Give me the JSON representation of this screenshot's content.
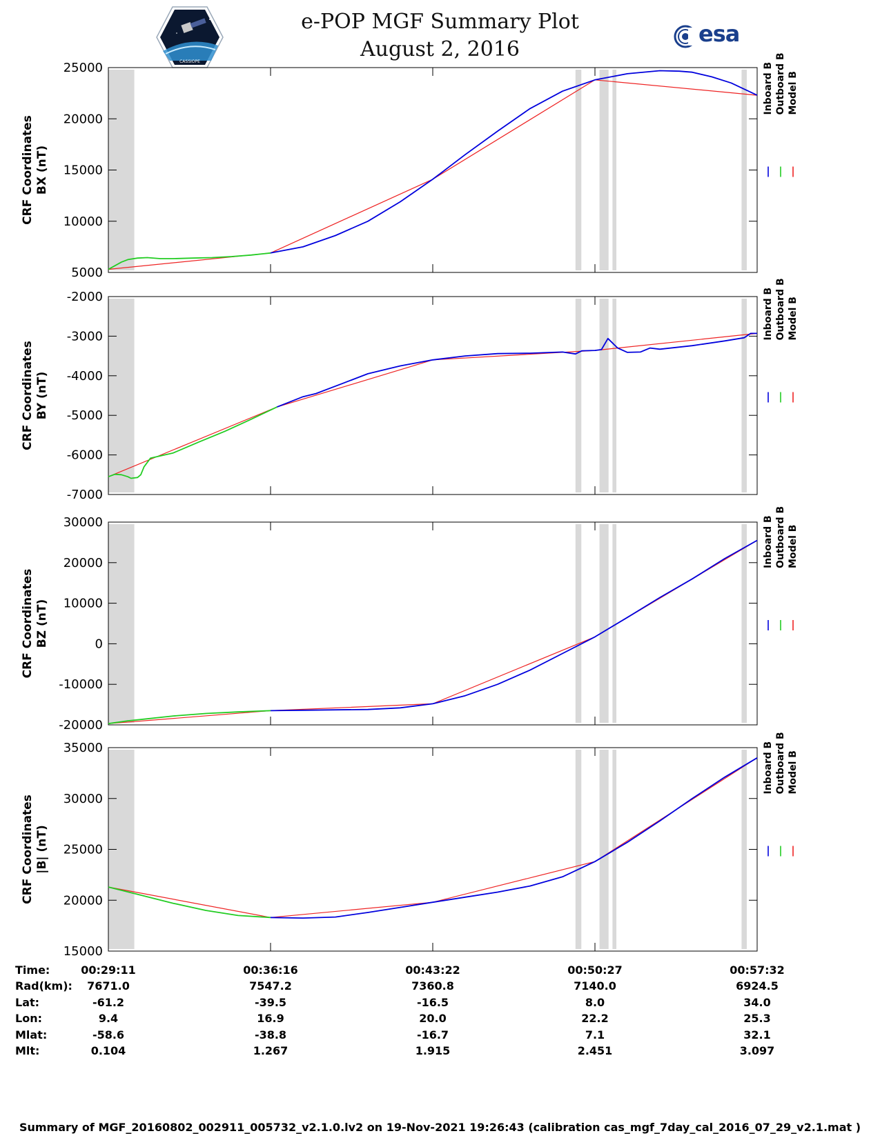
{
  "header": {
    "title_line1": "e-POP MGF Summary Plot",
    "title_line2": "August 2, 2016",
    "left_logo_caption": "CASSIOPE",
    "right_logo_text": "esa"
  },
  "legend": {
    "items": [
      {
        "label": "Inboard B",
        "color": "#0000dd"
      },
      {
        "label": "Outboard B",
        "color": "#22cc22"
      },
      {
        "label": "Model B",
        "color": "#ee2222"
      }
    ]
  },
  "chart_data": [
    {
      "type": "line",
      "ylabel_line1": "CRF Coordinates",
      "ylabel_line2": "BX (nT)",
      "ylim": [
        5000,
        25000
      ],
      "yticks": [
        5000,
        10000,
        15000,
        20000,
        25000
      ],
      "xlim": [
        0,
        1.0
      ],
      "gray_spans": [
        [
          0.0,
          0.04
        ],
        [
          0.72,
          0.729
        ],
        [
          0.757,
          0.771
        ],
        [
          0.777,
          0.783
        ],
        [
          0.976,
          0.984
        ]
      ],
      "series": [
        {
          "name": "Outboard B",
          "x": [
            0.0,
            0.01,
            0.02,
            0.03,
            0.045,
            0.06,
            0.08,
            0.1,
            0.13,
            0.16,
            0.19,
            0.22,
            0.25
          ],
          "y": [
            5300,
            5650,
            6000,
            6250,
            6400,
            6450,
            6350,
            6350,
            6400,
            6450,
            6550,
            6700,
            6900
          ]
        },
        {
          "name": "Inboard B",
          "x": [
            0.25,
            0.3,
            0.35,
            0.4,
            0.45,
            0.5,
            0.55,
            0.6,
            0.65,
            0.7,
            0.75,
            0.8,
            0.85,
            0.88,
            0.9,
            0.93,
            0.96,
            0.98,
            1.0
          ],
          "y": [
            6900,
            7500,
            8600,
            10000,
            11900,
            14100,
            16500,
            18800,
            21000,
            22700,
            23800,
            24400,
            24700,
            24650,
            24550,
            24100,
            23500,
            22900,
            22300
          ]
        },
        {
          "name": "Model B",
          "x": [
            0.0,
            0.25,
            0.5,
            0.75,
            1.0
          ],
          "y": [
            5300,
            6900,
            14100,
            23800,
            22300
          ]
        }
      ]
    },
    {
      "type": "line",
      "ylabel_line1": "CRF Coordinates",
      "ylabel_line2": "BY (nT)",
      "ylim": [
        -7000,
        -2000
      ],
      "yticks": [
        -7000,
        -6000,
        -5000,
        -4000,
        -3000,
        -2000
      ],
      "xlim": [
        0,
        1.0
      ],
      "gray_spans": [
        [
          0.0,
          0.04
        ],
        [
          0.72,
          0.729
        ],
        [
          0.757,
          0.771
        ],
        [
          0.777,
          0.783
        ],
        [
          0.976,
          0.984
        ]
      ],
      "series": [
        {
          "name": "Outboard B",
          "x": [
            0.0,
            0.01,
            0.02,
            0.03,
            0.035,
            0.045,
            0.05,
            0.055,
            0.065,
            0.1,
            0.14,
            0.18,
            0.22,
            0.26
          ],
          "y": [
            -6550,
            -6490,
            -6500,
            -6550,
            -6590,
            -6570,
            -6500,
            -6300,
            -6080,
            -5950,
            -5670,
            -5400,
            -5100,
            -4790
          ]
        },
        {
          "name": "Inboard B",
          "x": [
            0.26,
            0.3,
            0.32,
            0.36,
            0.4,
            0.45,
            0.5,
            0.55,
            0.6,
            0.65,
            0.7,
            0.72,
            0.73,
            0.75,
            0.76,
            0.77,
            0.785,
            0.8,
            0.82,
            0.835,
            0.85,
            0.9,
            0.95,
            0.98,
            0.99,
            1.0
          ],
          "y": [
            -4790,
            -4530,
            -4450,
            -4200,
            -3950,
            -3750,
            -3600,
            -3500,
            -3440,
            -3430,
            -3400,
            -3450,
            -3370,
            -3360,
            -3340,
            -3060,
            -3300,
            -3410,
            -3400,
            -3300,
            -3330,
            -3240,
            -3120,
            -3040,
            -2930,
            -2930
          ]
        },
        {
          "name": "Model B",
          "x": [
            0.0,
            0.26,
            0.5,
            0.75,
            1.0
          ],
          "y": [
            -6550,
            -4790,
            -3600,
            -3360,
            -2930
          ]
        }
      ]
    },
    {
      "type": "line",
      "ylabel_line1": "CRF Coordinates",
      "ylabel_line2": "BZ (nT)",
      "ylim": [
        -20000,
        30000
      ],
      "yticks": [
        -20000,
        -10000,
        0,
        10000,
        20000,
        30000
      ],
      "xlim": [
        0,
        1.0
      ],
      "gray_spans": [
        [
          0.0,
          0.04
        ],
        [
          0.72,
          0.729
        ],
        [
          0.757,
          0.771
        ],
        [
          0.777,
          0.783
        ],
        [
          0.976,
          0.984
        ]
      ],
      "series": [
        {
          "name": "Outboard B",
          "x": [
            0.0,
            0.03,
            0.06,
            0.1,
            0.15,
            0.2,
            0.25
          ],
          "y": [
            -19700,
            -19000,
            -18500,
            -17800,
            -17200,
            -16800,
            -16500
          ]
        },
        {
          "name": "Inboard B",
          "x": [
            0.25,
            0.3,
            0.35,
            0.4,
            0.45,
            0.5,
            0.55,
            0.6,
            0.65,
            0.7,
            0.75,
            0.8,
            0.85,
            0.9,
            0.95,
            1.0
          ],
          "y": [
            -16500,
            -16400,
            -16300,
            -16200,
            -15800,
            -14800,
            -12800,
            -10000,
            -6500,
            -2400,
            1700,
            6500,
            11400,
            16000,
            21000,
            25500
          ]
        },
        {
          "name": "Model B",
          "x": [
            0.0,
            0.25,
            0.5,
            0.75,
            1.0
          ],
          "y": [
            -19700,
            -16500,
            -14800,
            1700,
            25500
          ]
        }
      ]
    },
    {
      "type": "line",
      "ylabel_line1": "CRF Coordinates",
      "ylabel_line2": "|B| (nT)",
      "ylim": [
        15000,
        35000
      ],
      "yticks": [
        15000,
        20000,
        25000,
        30000,
        35000
      ],
      "xlim": [
        0,
        1.0
      ],
      "gray_spans": [
        [
          0.0,
          0.04
        ],
        [
          0.72,
          0.729
        ],
        [
          0.757,
          0.771
        ],
        [
          0.777,
          0.783
        ],
        [
          0.976,
          0.984
        ]
      ],
      "series": [
        {
          "name": "Outboard B",
          "x": [
            0.0,
            0.05,
            0.1,
            0.15,
            0.2,
            0.25
          ],
          "y": [
            21300,
            20500,
            19700,
            19000,
            18500,
            18300
          ]
        },
        {
          "name": "Inboard B",
          "x": [
            0.25,
            0.3,
            0.35,
            0.4,
            0.45,
            0.5,
            0.55,
            0.6,
            0.65,
            0.7,
            0.75,
            0.8,
            0.85,
            0.9,
            0.95,
            1.0
          ],
          "y": [
            18300,
            18250,
            18350,
            18800,
            19300,
            19800,
            20300,
            20800,
            21400,
            22300,
            23800,
            25700,
            27800,
            30000,
            32100,
            34000
          ]
        },
        {
          "name": "Model B",
          "x": [
            0.0,
            0.25,
            0.5,
            0.75,
            1.0
          ],
          "y": [
            21300,
            18300,
            19800,
            23800,
            34000
          ]
        }
      ]
    }
  ],
  "ephemeris": {
    "labels": [
      "Time:",
      "Rad(km):",
      "Lat:",
      "Lon:",
      "Mlat:",
      "Mlt:"
    ],
    "columns": [
      {
        "values": [
          "00:29:11",
          "7671.0",
          "-61.2",
          "9.4",
          "-58.6",
          "0.104"
        ]
      },
      {
        "values": [
          "00:36:16",
          "7547.2",
          "-39.5",
          "16.9",
          "-38.8",
          "1.267"
        ]
      },
      {
        "values": [
          "00:43:22",
          "7360.8",
          "-16.5",
          "20.0",
          "-16.7",
          "1.915"
        ]
      },
      {
        "values": [
          "00:50:27",
          "7140.0",
          "8.0",
          "22.2",
          "7.1",
          "2.451"
        ]
      },
      {
        "values": [
          "00:57:32",
          "6924.5",
          "34.0",
          "25.3",
          "32.1",
          "3.097"
        ]
      }
    ]
  },
  "footer_text": "Summary of MGF_20160802_002911_005732_v2.1.0.lv2 on 19-Nov-2021 19:26:43 (calibration cas_mgf_7day_cal_2016_07_29_v2.1.mat )"
}
